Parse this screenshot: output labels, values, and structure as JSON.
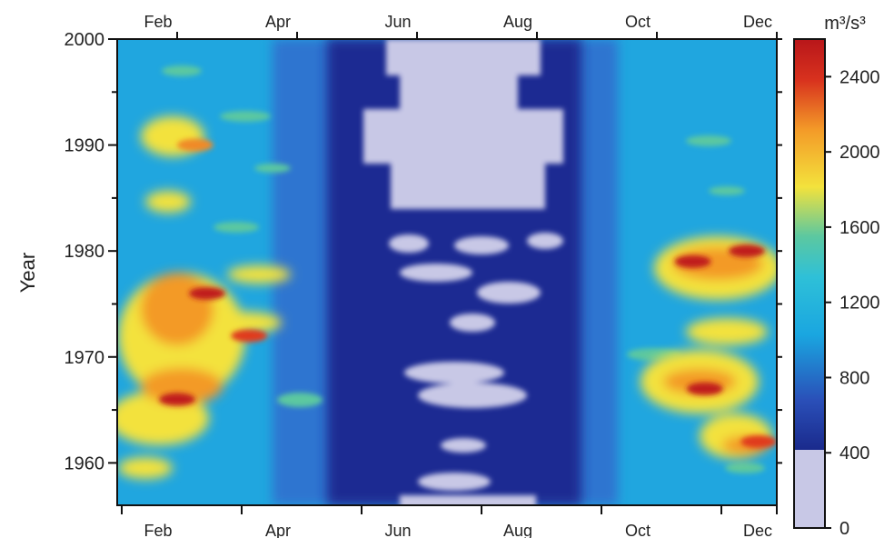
{
  "chart_data": {
    "type": "heatmap",
    "title": "",
    "xlabel": "",
    "ylabel": "Year",
    "x_ticks": [
      "Feb",
      "Apr",
      "Jun",
      "Aug",
      "Oct",
      "Dec"
    ],
    "x_range_months": [
      1,
      12
    ],
    "y_ticks": [
      1960,
      1970,
      1980,
      1990,
      2000
    ],
    "y_range": [
      1956,
      2000
    ],
    "colorbar": {
      "unit": "m³/s³",
      "ticks": [
        0,
        400,
        800,
        1200,
        1600,
        2000,
        2400
      ],
      "range": [
        0,
        2600
      ],
      "colors": {
        "min": "#c8c8e6",
        "low": "#1a2a8c",
        "mid_blue": "#2f6fd0",
        "cyan": "#1aa6e0",
        "green": "#5cc8a0",
        "yellow": "#f3e23c",
        "orange": "#f39a28",
        "red": "#d8321e",
        "max": "#b8161a"
      }
    },
    "hotspots": [
      {
        "month": 2.0,
        "year": 1966,
        "value": 2400
      },
      {
        "month": 2.5,
        "year": 1976,
        "value": 2300
      },
      {
        "month": 3.2,
        "year": 1972,
        "value": 2100
      },
      {
        "month": 2.3,
        "year": 1990,
        "value": 1900
      },
      {
        "month": 10.6,
        "year": 1979,
        "value": 2400
      },
      {
        "month": 11.5,
        "year": 1980,
        "value": 2300
      },
      {
        "month": 10.8,
        "year": 1967,
        "value": 2300
      },
      {
        "month": 11.7,
        "year": 1962,
        "value": 2100
      }
    ]
  }
}
